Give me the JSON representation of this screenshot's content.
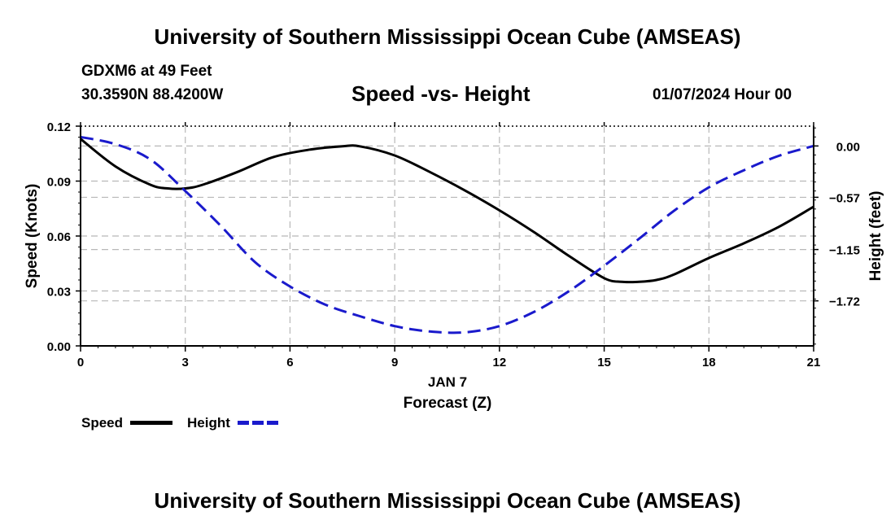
{
  "header": {
    "title": "University of Southern Mississippi Ocean Cube (AMSEAS)",
    "station": "GDXM6 at 49 Feet",
    "coords": "30.3590N  88.4200W",
    "plot_title": "Speed -vs- Height",
    "datetime": "01/07/2024 Hour 00"
  },
  "footer": {
    "title": "University of Southern Mississippi Ocean Cube (AMSEAS)"
  },
  "legend": {
    "speed_label": "Speed",
    "height_label": "Height"
  },
  "colors": {
    "speed": "#000000",
    "height": "#1a1acc",
    "grid": "#b8b8b8"
  },
  "chart_data": {
    "type": "line",
    "title": "Speed -vs- Height",
    "xlabel_day": "JAN 7",
    "xlabel": "Forecast (Z)",
    "ylabel": "Speed (Knots)",
    "ylabel_right": "Height (feet)",
    "xlim": [
      0,
      21
    ],
    "ylim": [
      0,
      0.12
    ],
    "ylim_right": [
      -2.22,
      0.22
    ],
    "x_ticks": [
      0,
      3,
      6,
      9,
      12,
      15,
      18,
      21
    ],
    "x_tick_labels": [
      "0",
      "3",
      "6",
      "9",
      "12",
      "15",
      "18",
      "21"
    ],
    "y_ticks": [
      0,
      0.03,
      0.06,
      0.09,
      0.12
    ],
    "y_tick_labels": [
      "0.00",
      "0.03",
      "0.06",
      "0.09",
      "0.12"
    ],
    "y_right_ticks": [
      0.0,
      -0.57,
      -1.15,
      -1.72
    ],
    "y_right_tick_labels": [
      "0.00",
      "−0.57",
      "−1.15",
      "−1.72"
    ],
    "grid": true,
    "series": [
      {
        "name": "Speed",
        "axis": "left",
        "style": "solid",
        "x": [
          0,
          1,
          2,
          2.5,
          3,
          3.5,
          4.5,
          5.5,
          6.5,
          7.5,
          8,
          9,
          10,
          11,
          12,
          13,
          14,
          15,
          15.5,
          16,
          16.5,
          17,
          18,
          19,
          20,
          21
        ],
        "values": [
          0.113,
          0.098,
          0.088,
          0.086,
          0.086,
          0.088,
          0.095,
          0.103,
          0.107,
          0.109,
          0.109,
          0.104,
          0.095,
          0.085,
          0.074,
          0.062,
          0.049,
          0.037,
          0.035,
          0.035,
          0.036,
          0.039,
          0.048,
          0.056,
          0.065,
          0.076
        ]
      },
      {
        "name": "Height",
        "axis": "right",
        "style": "dashed",
        "x": [
          0,
          1,
          2,
          3,
          4,
          5,
          6,
          7,
          8,
          9,
          10,
          11,
          12,
          13,
          14,
          15,
          16,
          17,
          18,
          19,
          20,
          21
        ],
        "values": [
          0.1,
          0.02,
          -0.15,
          -0.5,
          -0.88,
          -1.29,
          -1.56,
          -1.76,
          -1.89,
          -2.0,
          -2.06,
          -2.07,
          -2.0,
          -1.84,
          -1.61,
          -1.33,
          -1.03,
          -0.72,
          -0.46,
          -0.27,
          -0.11,
          0.0
        ]
      }
    ]
  }
}
